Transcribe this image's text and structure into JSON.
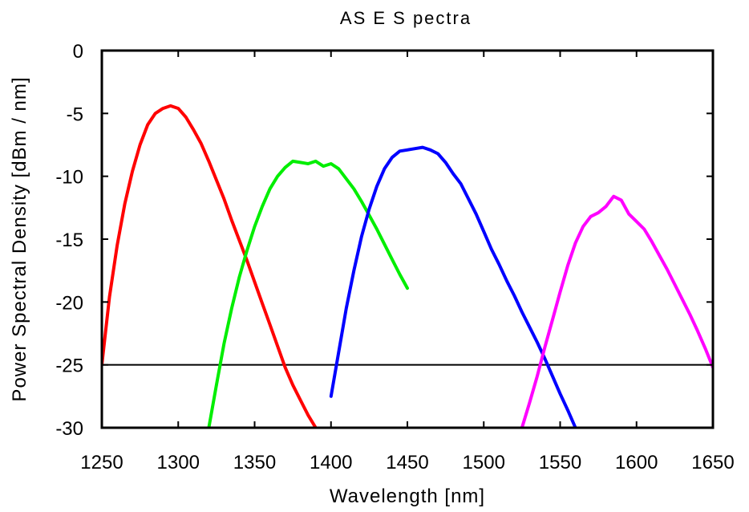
{
  "chart_data": {
    "type": "line",
    "title": "AS E  S pectra",
    "xlabel": "Wavelength [nm]",
    "ylabel": "Power Spectral Density [dBm / nm]",
    "xlim": [
      1250,
      1650
    ],
    "ylim": [
      -30,
      0
    ],
    "xticks": [
      "1250",
      "1300",
      "1350",
      "1400",
      "1450",
      "1500",
      "1550",
      "1600",
      "1650"
    ],
    "yticks": [
      "0",
      "-5",
      "-10",
      "-15",
      "-20",
      "-25",
      "-30"
    ],
    "grid": false,
    "legend": "none",
    "reference_line": {
      "y": -25,
      "color": "#000000"
    },
    "series": [
      {
        "color": "#ff0000",
        "x": [
          1250,
          1255,
          1260,
          1265,
          1270,
          1275,
          1280,
          1285,
          1290,
          1295,
          1300,
          1305,
          1310,
          1315,
          1320,
          1325,
          1330,
          1335,
          1340,
          1345,
          1350,
          1355,
          1360,
          1365,
          1370,
          1375,
          1380,
          1385,
          1390
        ],
        "y": [
          -25,
          -19.6,
          -15.5,
          -12.2,
          -9.6,
          -7.5,
          -5.9,
          -5.0,
          -4.6,
          -4.4,
          -4.6,
          -5.3,
          -6.3,
          -7.4,
          -8.8,
          -10.3,
          -11.8,
          -13.5,
          -15.1,
          -16.7,
          -18.4,
          -20.1,
          -21.8,
          -23.5,
          -25.2,
          -26.6,
          -27.8,
          -29.0,
          -30.0
        ]
      },
      {
        "color": "#00ee00",
        "x": [
          1320,
          1325,
          1330,
          1335,
          1340,
          1345,
          1350,
          1355,
          1360,
          1365,
          1370,
          1375,
          1380,
          1385,
          1390,
          1395,
          1400,
          1405,
          1410,
          1415,
          1420,
          1425,
          1430,
          1435,
          1440,
          1445,
          1450
        ],
        "y": [
          -30,
          -26.6,
          -23.3,
          -20.5,
          -18.0,
          -15.9,
          -14.0,
          -12.4,
          -11.0,
          -10.0,
          -9.3,
          -8.8,
          -8.9,
          -9.0,
          -8.8,
          -9.2,
          -9.0,
          -9.4,
          -10.2,
          -11.0,
          -12.0,
          -13.1,
          -14.2,
          -15.4,
          -16.6,
          -17.8,
          -18.9
        ]
      },
      {
        "color": "#0000ff",
        "x": [
          1400,
          1405,
          1410,
          1415,
          1420,
          1425,
          1430,
          1435,
          1440,
          1445,
          1450,
          1455,
          1460,
          1465,
          1470,
          1475,
          1480,
          1485,
          1490,
          1495,
          1500,
          1505,
          1510,
          1515,
          1520,
          1525,
          1530,
          1535,
          1540,
          1545,
          1550,
          1555,
          1560
        ],
        "y": [
          -27.5,
          -24.0,
          -20.5,
          -17.5,
          -14.8,
          -12.6,
          -10.8,
          -9.4,
          -8.5,
          -8.0,
          -7.9,
          -7.8,
          -7.7,
          -7.9,
          -8.2,
          -8.9,
          -9.8,
          -10.6,
          -11.8,
          -13.0,
          -14.4,
          -15.8,
          -17.0,
          -18.3,
          -19.5,
          -20.8,
          -22.0,
          -23.2,
          -24.5,
          -25.9,
          -27.3,
          -28.6,
          -30.0
        ]
      },
      {
        "color": "#ff00ff",
        "x": [
          1525,
          1530,
          1535,
          1540,
          1545,
          1550,
          1555,
          1560,
          1565,
          1570,
          1575,
          1580,
          1585,
          1590,
          1595,
          1600,
          1605,
          1610,
          1615,
          1620,
          1625,
          1630,
          1635,
          1640,
          1645,
          1650
        ],
        "y": [
          -30,
          -28.0,
          -25.9,
          -23.6,
          -21.4,
          -19.2,
          -17.1,
          -15.3,
          -14.0,
          -13.2,
          -12.9,
          -12.4,
          -11.6,
          -11.9,
          -13.0,
          -13.6,
          -14.2,
          -15.2,
          -16.3,
          -17.4,
          -18.6,
          -19.8,
          -21.0,
          -22.3,
          -23.7,
          -25.2
        ]
      }
    ]
  }
}
